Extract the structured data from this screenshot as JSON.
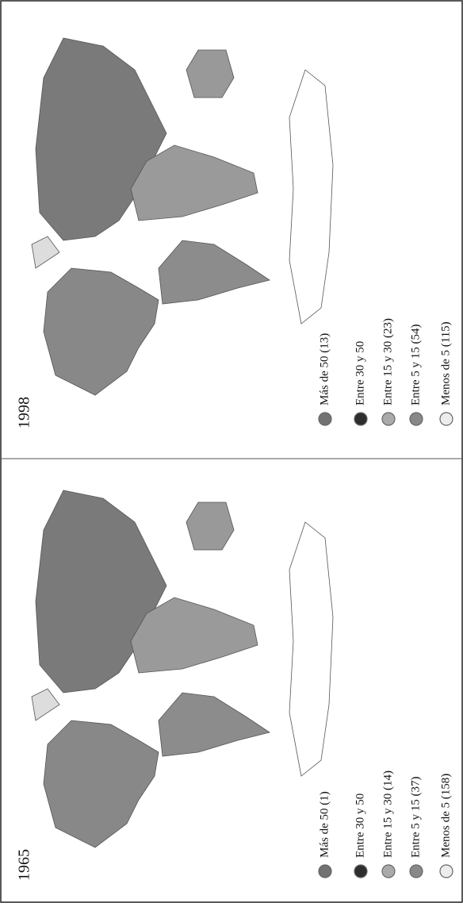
{
  "panels": [
    {
      "year": "1965",
      "legend": [
        {
          "label": "Más de 50 (1)",
          "color": "#727272"
        },
        {
          "label": "Entre 30 y 50",
          "color": "#2e2e2e"
        },
        {
          "label": "Entre 15 y 30 (14)",
          "color": "#aaaaaa"
        },
        {
          "label": "Entre 5 y 15 (37)",
          "color": "#888888"
        },
        {
          "label": "Menos de 5 (158)",
          "color": "#ececec"
        }
      ]
    },
    {
      "year": "1998",
      "legend": [
        {
          "label": "Más de 50 (13)",
          "color": "#727272"
        },
        {
          "label": "Entre 30 y 50",
          "color": "#2e2e2e"
        },
        {
          "label": "Entre 15 y 30 (23)",
          "color": "#aaaaaa"
        },
        {
          "label": "Entre 5 y 15 (54)",
          "color": "#888888"
        },
        {
          "label": "Menos de 5 (115)",
          "color": "#ececec"
        }
      ]
    }
  ]
}
